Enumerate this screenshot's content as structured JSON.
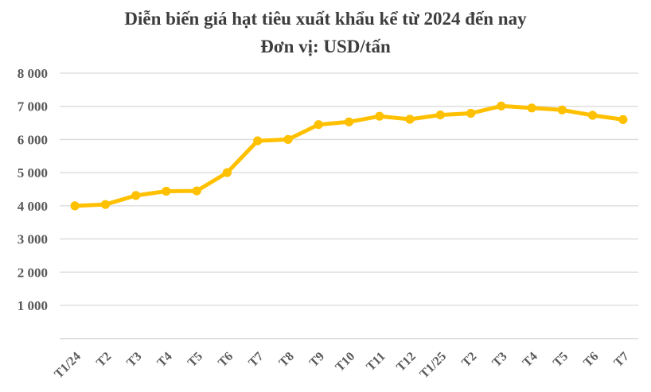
{
  "chart_data": {
    "type": "line",
    "title": "Diễn biến giá hạt tiêu xuất khẩu kể từ 2024 đến nay",
    "subtitle": "Đơn vị: USD/tấn",
    "categories": [
      "T1/24",
      "T2",
      "T3",
      "T4",
      "T5",
      "T6",
      "T7",
      "T8",
      "T9",
      "T10",
      "T11",
      "T12",
      "T1/25",
      "T2",
      "T3",
      "T4",
      "T5",
      "T6",
      "T7"
    ],
    "values": [
      4000,
      4040,
      4310,
      4440,
      4450,
      5000,
      5960,
      6000,
      6450,
      6530,
      6700,
      6610,
      6740,
      6790,
      7010,
      6950,
      6890,
      6730,
      6600
    ],
    "ylim": [
      0,
      8000
    ],
    "ytick_values": [
      8000,
      7000,
      6000,
      5000,
      4000,
      3000,
      2000,
      1000
    ],
    "gridline_values": [
      8000,
      7000,
      6000,
      5000,
      4000,
      3000,
      2000,
      1000,
      0
    ],
    "grid": true,
    "legend_position": "none",
    "xlabel": "",
    "ylabel": "",
    "colors": {
      "line": "#FFC000",
      "marker": "#FFC000",
      "gridline": "#D9D9D9",
      "tick_text": "#595959",
      "title_text": "#3D3D3D"
    }
  }
}
